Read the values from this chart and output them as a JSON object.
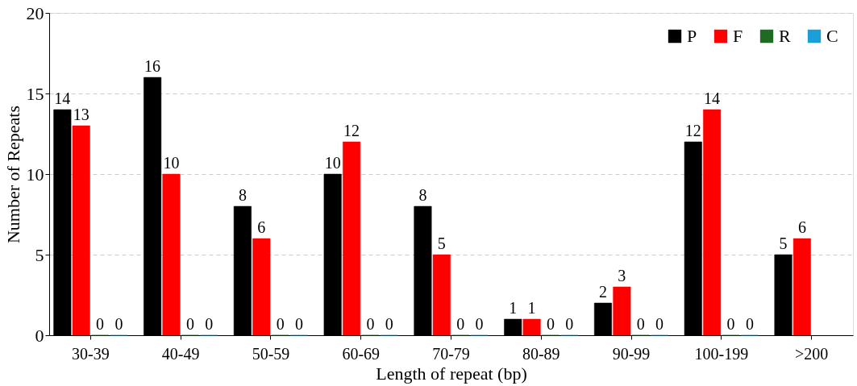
{
  "chart_data": {
    "type": "bar",
    "xlabel": "Length of repeat (bp)",
    "ylabel": "Number of Repeats",
    "categories": [
      "30-39",
      "40-49",
      "50-59",
      "60-69",
      "70-79",
      "80-89",
      "90-99",
      "100-199",
      ">200"
    ],
    "series": [
      {
        "name": "P",
        "color": "#000000",
        "values": [
          14,
          16,
          8,
          10,
          8,
          1,
          2,
          12,
          5
        ]
      },
      {
        "name": "F",
        "color": "#ff0000",
        "values": [
          13,
          10,
          6,
          12,
          5,
          1,
          3,
          14,
          6
        ]
      },
      {
        "name": "R",
        "color": "#1e6b24",
        "values": [
          0,
          0,
          0,
          0,
          0,
          0,
          0,
          0,
          null
        ]
      },
      {
        "name": "C",
        "color": "#1a9fd8",
        "values": [
          0,
          0,
          0,
          0,
          0,
          0,
          0,
          0,
          null
        ]
      }
    ],
    "ylim": [
      0,
      20
    ],
    "yticks": [
      0,
      5,
      10,
      15,
      20
    ],
    "grid": "y",
    "legend": "top right",
    "data_labels": true
  }
}
